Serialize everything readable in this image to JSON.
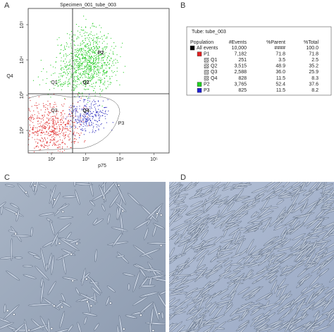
{
  "panels": {
    "a": "A",
    "b": "B",
    "c": "C",
    "d": "D"
  },
  "plot": {
    "title": "Specimen_001_tube_003",
    "x_label": "p75",
    "y_label": "Q4",
    "x_ticks": [
      "10²",
      "10³",
      "10⁴",
      "10⁵"
    ],
    "y_ticks": [
      "10²",
      "10³",
      "10⁴",
      "10⁵"
    ],
    "gates": {
      "q1": "Q1",
      "q2": "Q2",
      "q3": "Q3",
      "q4": "Q4",
      "p2": "P2",
      "p3": "P3"
    }
  },
  "table": {
    "tube": "Tube: tube_003",
    "header": [
      "Population",
      "#Events",
      "%Parent",
      "%Total"
    ],
    "rows": [
      {
        "name": "All events",
        "events": "10,000",
        "parent": "####",
        "total": "100.0",
        "color": "#000000"
      },
      {
        "name": "P1",
        "events": "7,182",
        "parent": "71.8",
        "total": "71.8",
        "color": "#e02020"
      },
      {
        "name": "Q1",
        "events": "251",
        "parent": "3.5",
        "total": "2.5",
        "color": "hatch"
      },
      {
        "name": "Q2",
        "events": "3,515",
        "parent": "48.9",
        "total": "35.2",
        "color": "hatch"
      },
      {
        "name": "Q3",
        "events": "2,588",
        "parent": "36.0",
        "total": "25.9",
        "color": "hatch"
      },
      {
        "name": "Q4",
        "events": "828",
        "parent": "11.5",
        "total": "8.3",
        "color": "hatch"
      },
      {
        "name": "P2",
        "events": "3,765",
        "parent": "52.4",
        "total": "37.6",
        "color": "#20d020"
      },
      {
        "name": "P3",
        "events": "825",
        "parent": "11.5",
        "total": "8.2",
        "color": "#2020d0"
      }
    ]
  }
}
